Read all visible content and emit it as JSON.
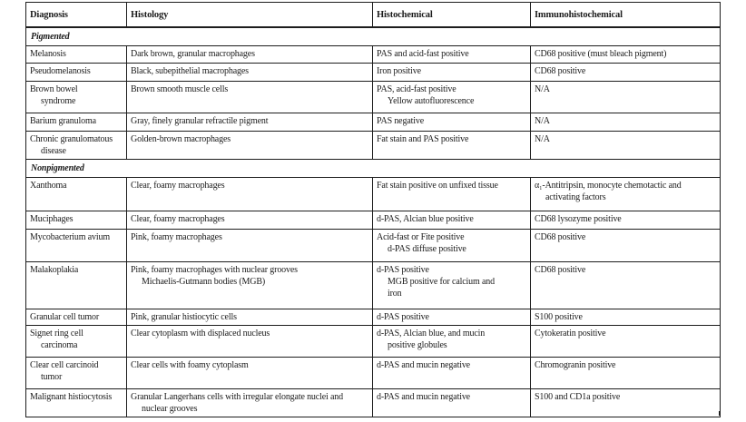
{
  "table": {
    "border_color": "#1d1d1d",
    "header": {
      "columns": [
        "Diagnosis",
        "Histology",
        "Histochemical",
        "Immunohistochemical"
      ]
    },
    "sections": [
      {
        "label": "Pigmented",
        "rows": [
          {
            "diagnosis": [
              "Melanosis"
            ],
            "histology": [
              "Dark brown, granular macrophages"
            ],
            "histochemical": [
              "PAS and acid-fast positive"
            ],
            "immunohistochemical": [
              "CD68 positive (must bleach pigment)"
            ]
          },
          {
            "diagnosis": [
              "Pseudomelanosis"
            ],
            "histology": [
              "Black, subepithelial macrophages"
            ],
            "histochemical": [
              "Iron positive"
            ],
            "immunohistochemical": [
              "CD68 positive"
            ]
          },
          {
            "diagnosis": [
              "Brown bowel",
              "syndrome"
            ],
            "histology": [
              "Brown smooth muscle cells"
            ],
            "histochemical": [
              "PAS, acid-fast positive",
              "Yellow autofluorescence"
            ],
            "immunohistochemical": [
              "N/A"
            ]
          },
          {
            "diagnosis": [
              "Barium granuloma"
            ],
            "histology": [
              "Gray, finely granular refractile pigment"
            ],
            "histochemical": [
              "PAS negative"
            ],
            "immunohistochemical": [
              "N/A"
            ]
          },
          {
            "diagnosis": [
              "Chronic granulomatous",
              "disease"
            ],
            "histology": [
              "Golden-brown macrophages"
            ],
            "histochemical": [
              "Fat stain and PAS positive"
            ],
            "immunohistochemical": [
              "N/A"
            ]
          }
        ]
      },
      {
        "label": "Nonpigmented",
        "rows": [
          {
            "diagnosis": [
              "Xanthoma"
            ],
            "histology": [
              "Clear, foamy macrophages"
            ],
            "histochemical": [
              "Fat stain positive on unfixed tissue"
            ],
            "immunohistochemical": [
              "α₁-Antitripsin, monocyte chemotactic and",
              "activating factors"
            ]
          },
          {
            "diagnosis": [
              "Muciphages"
            ],
            "histology": [
              "Clear, foamy macrophages"
            ],
            "histochemical": [
              "d-PAS, Alcian blue positive"
            ],
            "immunohistochemical": [
              "CD68 lysozyme positive"
            ]
          },
          {
            "diagnosis": [
              "Mycobacterium avium"
            ],
            "histology": [
              "Pink, foamy macrophages"
            ],
            "histochemical": [
              "Acid-fast or Fite positive",
              "d-PAS diffuse positive"
            ],
            "immunohistochemical": [
              "CD68 positive"
            ]
          },
          {
            "diagnosis": [
              "Malakoplakia"
            ],
            "histology": [
              "Pink, foamy macrophages with nuclear grooves",
              "Michaelis-Gutmann bodies (MGB)"
            ],
            "histochemical": [
              "d-PAS positive",
              "MGB positive for calcium and",
              "iron"
            ],
            "immunohistochemical": [
              "CD68 positive"
            ]
          },
          {
            "diagnosis": [
              "Granular cell tumor"
            ],
            "histology": [
              "Pink, granular histiocytic cells"
            ],
            "histochemical": [
              "d-PAS positive"
            ],
            "immunohistochemical": [
              "S100 positive"
            ]
          },
          {
            "diagnosis": [
              "Signet ring cell",
              "carcinoma"
            ],
            "histology": [
              "Clear cytoplasm with displaced nucleus"
            ],
            "histochemical": [
              "d-PAS, Alcian blue, and mucin",
              "positive globules"
            ],
            "immunohistochemical": [
              "Cytokeratin positive"
            ]
          },
          {
            "diagnosis": [
              "Clear cell carcinoid",
              "tumor"
            ],
            "histology": [
              "Clear cells with foamy cytoplasm"
            ],
            "histochemical": [
              "d-PAS and mucin negative"
            ],
            "immunohistochemical": [
              "Chromogranin positive"
            ]
          },
          {
            "diagnosis": [
              "Malignant histiocytosis"
            ],
            "histology": [
              "Granular Langerhans cells with irregular elongate nuclei and",
              "nuclear grooves"
            ],
            "histochemical": [
              "d-PAS and mucin negative"
            ],
            "immunohistochemical": [
              "S100 and CD1a positive"
            ]
          }
        ]
      }
    ]
  }
}
